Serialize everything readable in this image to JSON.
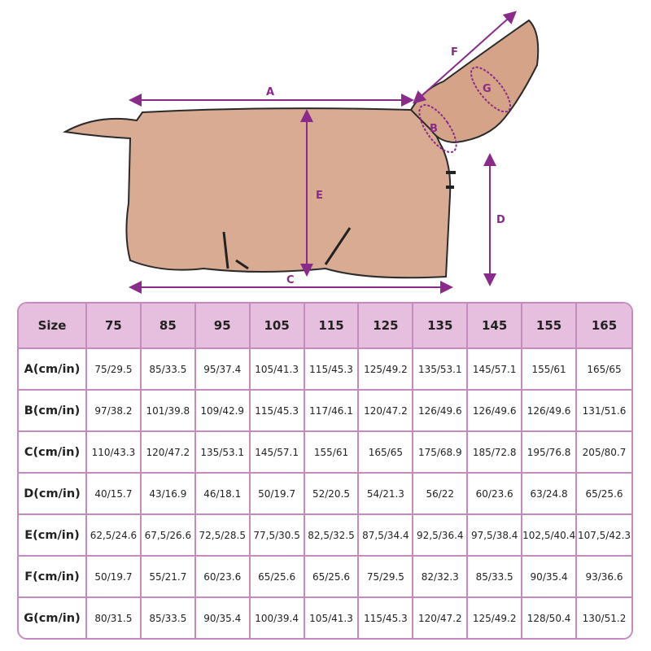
{
  "illustration": {
    "subject": "horse rug with neck cover",
    "measure_labels": [
      "A",
      "B",
      "C",
      "D",
      "E",
      "F",
      "G"
    ],
    "accent_color": "#8a2a8a",
    "fabric_color": "#d9ab92"
  },
  "table": {
    "header_label": "Size",
    "sizes": [
      "75",
      "85",
      "95",
      "105",
      "115",
      "125",
      "135",
      "145",
      "155",
      "165"
    ],
    "rows": [
      {
        "label": "A(cm/in)",
        "values": [
          "75/29.5",
          "85/33.5",
          "95/37.4",
          "105/41.3",
          "115/45.3",
          "125/49.2",
          "135/53.1",
          "145/57.1",
          "155/61",
          "165/65"
        ]
      },
      {
        "label": "B(cm/in)",
        "values": [
          "97/38.2",
          "101/39.8",
          "109/42.9",
          "115/45.3",
          "117/46.1",
          "120/47.2",
          "126/49.6",
          "126/49.6",
          "126/49.6",
          "131/51.6"
        ]
      },
      {
        "label": "C(cm/in)",
        "values": [
          "110/43.3",
          "120/47.2",
          "135/53.1",
          "145/57.1",
          "155/61",
          "165/65",
          "175/68.9",
          "185/72.8",
          "195/76.8",
          "205/80.7"
        ]
      },
      {
        "label": "D(cm/in)",
        "values": [
          "40/15.7",
          "43/16.9",
          "46/18.1",
          "50/19.7",
          "52/20.5",
          "54/21.3",
          "56/22",
          "60/23.6",
          "63/24.8",
          "65/25.6"
        ]
      },
      {
        "label": "E(cm/in)",
        "values": [
          "62,5/24.6",
          "67,5/26.6",
          "72,5/28.5",
          "77,5/30.5",
          "82,5/32.5",
          "87,5/34.4",
          "92,5/36.4",
          "97,5/38.4",
          "102,5/40.4",
          "107,5/42.3"
        ]
      },
      {
        "label": "F(cm/in)",
        "values": [
          "50/19.7",
          "55/21.7",
          "60/23.6",
          "65/25.6",
          "65/25.6",
          "75/29.5",
          "82/32.3",
          "85/33.5",
          "90/35.4",
          "93/36.6"
        ]
      },
      {
        "label": "G(cm/in)",
        "values": [
          "80/31.5",
          "85/33.5",
          "90/35.4",
          "100/39.4",
          "105/41.3",
          "115/45.3",
          "120/47.2",
          "125/49.2",
          "128/50.4",
          "130/51.2"
        ]
      }
    ]
  }
}
